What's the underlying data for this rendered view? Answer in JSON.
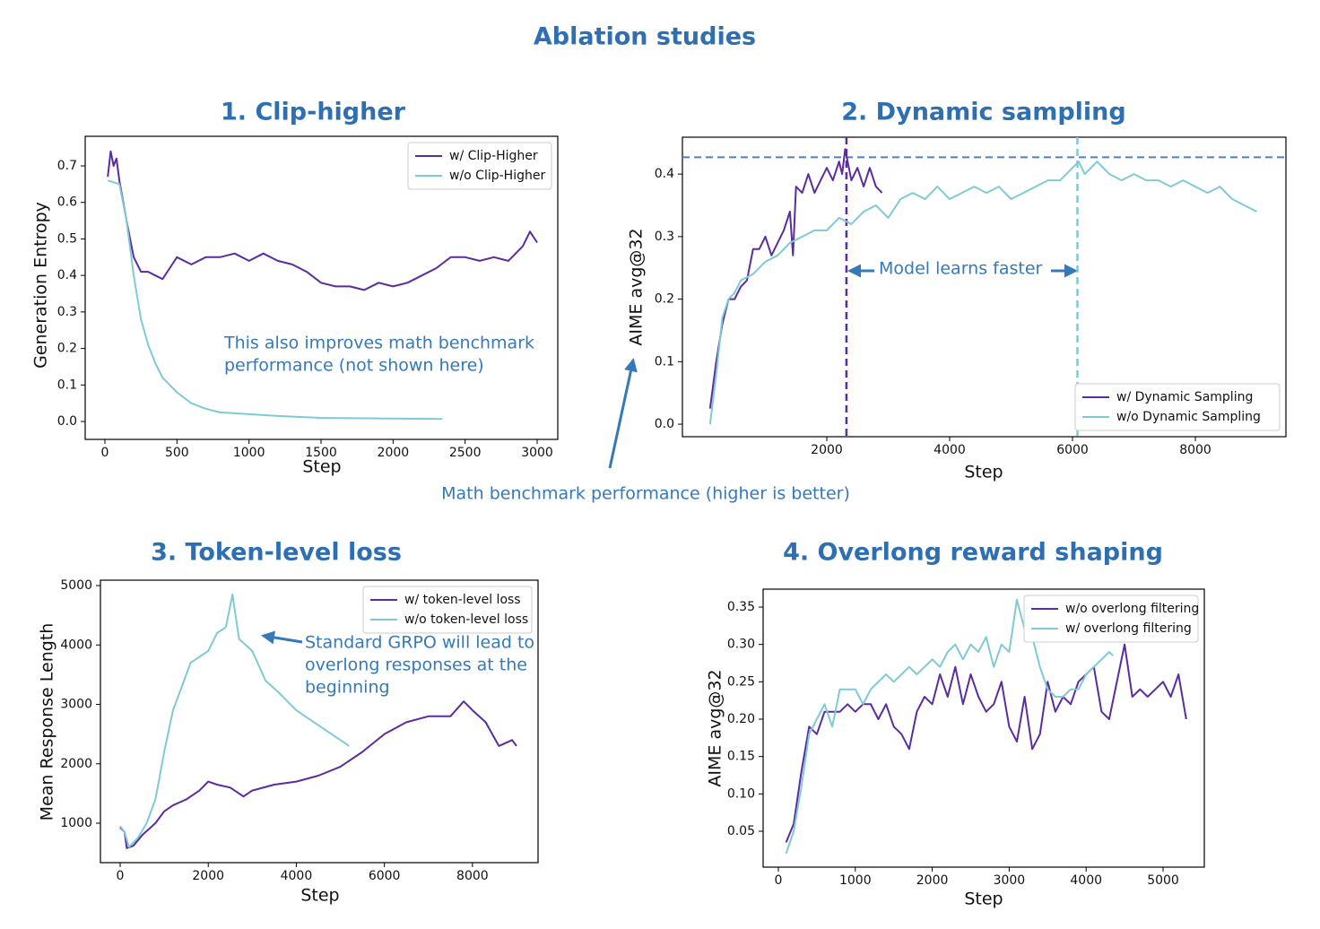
{
  "title": "Ablation studies",
  "annotation": "Math benchmark performance (higher is better)",
  "chart_data": [
    {
      "type": "line",
      "title": "1. Clip-higher",
      "xlabel": "Step",
      "ylabel": "Generation Entropy",
      "xlim": [
        -137,
        3143
      ],
      "ylim": [
        -0.049,
        0.781
      ],
      "xticks": [
        0,
        500,
        1000,
        1500,
        2000,
        2500,
        3000
      ],
      "yticks": [
        {
          "value": 0,
          "label": "0.0"
        },
        0.1,
        0.2,
        0.3,
        0.4,
        0.5,
        0.6,
        0.7
      ],
      "legend": "upper right",
      "annotation": [
        "This also improves math benchmark",
        "performance (not shown here)"
      ],
      "series": [
        {
          "name": "w/ Clip-Higher",
          "color": "#5b2c9f",
          "x": [
            20,
            40,
            60,
            80,
            100,
            150,
            200,
            250,
            300,
            350,
            400,
            450,
            500,
            600,
            700,
            800,
            900,
            1000,
            1100,
            1200,
            1300,
            1400,
            1500,
            1600,
            1700,
            1800,
            1900,
            2000,
            2100,
            2200,
            2300,
            2400,
            2500,
            2600,
            2700,
            2800,
            2900,
            2950,
            3000
          ],
          "values": [
            0.67,
            0.74,
            0.7,
            0.72,
            0.66,
            0.55,
            0.45,
            0.41,
            0.41,
            0.4,
            0.39,
            0.42,
            0.45,
            0.43,
            0.45,
            0.45,
            0.46,
            0.44,
            0.46,
            0.44,
            0.43,
            0.41,
            0.38,
            0.37,
            0.37,
            0.36,
            0.38,
            0.37,
            0.38,
            0.4,
            0.42,
            0.45,
            0.45,
            0.44,
            0.45,
            0.44,
            0.48,
            0.52,
            0.49
          ]
        },
        {
          "name": "w/o Clip-Higher",
          "color": "#7fcad4",
          "x": [
            20,
            100,
            150,
            200,
            250,
            300,
            350,
            400,
            500,
            600,
            700,
            800,
            1000,
            1200,
            1500,
            2000,
            2340
          ],
          "values": [
            0.66,
            0.65,
            0.55,
            0.4,
            0.28,
            0.21,
            0.16,
            0.12,
            0.08,
            0.05,
            0.035,
            0.025,
            0.02,
            0.015,
            0.01,
            0.008,
            0.007
          ]
        }
      ]
    },
    {
      "type": "line",
      "title": "2. Dynamic sampling",
      "xlabel": "Step",
      "ylabel": "AIME avg@32",
      "xlim": [
        -350,
        9474
      ],
      "ylim": [
        -0.02,
        0.459
      ],
      "xticks": [
        2000,
        4000,
        6000,
        8000
      ],
      "yticks": [
        {
          "value": 0,
          "label": "0.0"
        },
        0.1,
        0.2,
        0.3,
        0.4
      ],
      "legend": "lower right",
      "annotation": [
        "Model learns faster"
      ],
      "hlines": [
        {
          "value": 0.427,
          "color": "#4a7fcf"
        }
      ],
      "vlines": [
        {
          "value": 2320,
          "color": "#5b2c9f"
        },
        {
          "value": 6080,
          "color": "#7fcad4"
        }
      ],
      "series": [
        {
          "name": "w/ Dynamic Sampling",
          "color": "#5b2c9f",
          "x": [
            100,
            200,
            300,
            400,
            500,
            600,
            700,
            800,
            900,
            1000,
            1100,
            1200,
            1300,
            1400,
            1450,
            1500,
            1600,
            1700,
            1800,
            1900,
            2000,
            2100,
            2200,
            2250,
            2300,
            2400,
            2500,
            2600,
            2700,
            2800,
            2900
          ],
          "values": [
            0.025,
            0.1,
            0.16,
            0.2,
            0.2,
            0.22,
            0.23,
            0.28,
            0.28,
            0.3,
            0.27,
            0.29,
            0.31,
            0.34,
            0.27,
            0.38,
            0.37,
            0.4,
            0.37,
            0.39,
            0.41,
            0.39,
            0.42,
            0.4,
            0.44,
            0.39,
            0.41,
            0.38,
            0.41,
            0.38,
            0.37
          ]
        },
        {
          "name": "w/o Dynamic Sampling",
          "color": "#7fcad4",
          "x": [
            100,
            200,
            300,
            400,
            500,
            600,
            800,
            1000,
            1200,
            1400,
            1600,
            1800,
            2000,
            2200,
            2400,
            2600,
            2800,
            3000,
            3200,
            3400,
            3600,
            3800,
            4000,
            4200,
            4400,
            4600,
            4800,
            5000,
            5200,
            5400,
            5600,
            5800,
            6000,
            6100,
            6200,
            6400,
            6600,
            6800,
            7000,
            7200,
            7400,
            7600,
            7800,
            8000,
            8200,
            8400,
            8600,
            8800,
            9000
          ],
          "values": [
            0,
            0.08,
            0.17,
            0.2,
            0.21,
            0.23,
            0.24,
            0.26,
            0.27,
            0.29,
            0.3,
            0.31,
            0.31,
            0.33,
            0.32,
            0.34,
            0.35,
            0.33,
            0.36,
            0.37,
            0.36,
            0.38,
            0.36,
            0.37,
            0.38,
            0.37,
            0.38,
            0.36,
            0.37,
            0.38,
            0.39,
            0.39,
            0.41,
            0.42,
            0.4,
            0.42,
            0.4,
            0.39,
            0.4,
            0.39,
            0.39,
            0.38,
            0.39,
            0.38,
            0.37,
            0.38,
            0.36,
            0.35,
            0.34
          ]
        }
      ]
    },
    {
      "type": "line",
      "title": "3. Token-level loss",
      "xlabel": "Step",
      "ylabel": "Mean Response Length",
      "xlim": [
        -448,
        9489
      ],
      "ylim": [
        336,
        5091
      ],
      "xticks": [
        0,
        2000,
        4000,
        6000,
        8000
      ],
      "yticks": [
        1000,
        2000,
        3000,
        4000,
        5000
      ],
      "legend": "upper right",
      "annotation": [
        "Standard GRPO will lead to",
        "overlong responses at the",
        "beginning"
      ],
      "series": [
        {
          "name": "w/ token-level loss",
          "color": "#5b2c9f",
          "x": [
            0,
            100,
            150,
            300,
            500,
            800,
            1000,
            1200,
            1500,
            1800,
            2000,
            2200,
            2500,
            2800,
            3000,
            3500,
            4000,
            4500,
            5000,
            5500,
            6000,
            6500,
            7000,
            7500,
            7800,
            8000,
            8300,
            8600,
            8900,
            9000
          ],
          "values": [
            930,
            850,
            580,
            620,
            800,
            1000,
            1200,
            1300,
            1400,
            1550,
            1700,
            1650,
            1600,
            1450,
            1550,
            1650,
            1700,
            1800,
            1950,
            2200,
            2500,
            2700,
            2800,
            2800,
            3050,
            2900,
            2700,
            2300,
            2400,
            2300
          ]
        },
        {
          "name": "w/o token-level loss",
          "color": "#7fcad4",
          "x": [
            0,
            100,
            200,
            400,
            600,
            800,
            1000,
            1200,
            1400,
            1600,
            1800,
            2000,
            2200,
            2400,
            2550,
            2700,
            3000,
            3300,
            3600,
            4000,
            4400,
            4800,
            5200
          ],
          "values": [
            950,
            850,
            600,
            750,
            1000,
            1400,
            2200,
            2900,
            3300,
            3700,
            3800,
            3900,
            4200,
            4300,
            4850,
            4100,
            3900,
            3400,
            3200,
            2900,
            2700,
            2500,
            2300
          ]
        }
      ]
    },
    {
      "type": "line",
      "title": "4. Overlong reward shaping",
      "xlabel": "Step",
      "ylabel": "AIME avg@32",
      "xlim": [
        -198,
        5536
      ],
      "ylim": [
        0.002,
        0.374
      ],
      "xticks": [
        0,
        1000,
        2000,
        3000,
        4000,
        5000
      ],
      "yticks": [
        0.05,
        {
          "value": 0.1,
          "label": "0.10"
        },
        0.15,
        {
          "value": 0.2,
          "label": "0.20"
        },
        0.25,
        {
          "value": 0.3,
          "label": "0.30"
        },
        0.35
      ],
      "legend": "upper right",
      "series": [
        {
          "name": "w/o overlong filtering",
          "color": "#5b2c9f",
          "x": [
            100,
            200,
            300,
            400,
            500,
            600,
            700,
            800,
            900,
            1000,
            1100,
            1200,
            1300,
            1400,
            1500,
            1600,
            1700,
            1800,
            1900,
            2000,
            2100,
            2200,
            2300,
            2400,
            2500,
            2600,
            2700,
            2800,
            2900,
            3000,
            3100,
            3200,
            3300,
            3400,
            3500,
            3600,
            3700,
            3800,
            3900,
            4000,
            4100,
            4200,
            4300,
            4400,
            4500,
            4600,
            4700,
            4800,
            4900,
            5000,
            5100,
            5200,
            5300
          ],
          "values": [
            0.035,
            0.06,
            0.13,
            0.19,
            0.18,
            0.21,
            0.21,
            0.21,
            0.22,
            0.21,
            0.22,
            0.22,
            0.2,
            0.22,
            0.19,
            0.18,
            0.16,
            0.21,
            0.23,
            0.22,
            0.26,
            0.23,
            0.27,
            0.22,
            0.26,
            0.23,
            0.21,
            0.22,
            0.25,
            0.19,
            0.17,
            0.23,
            0.16,
            0.18,
            0.25,
            0.21,
            0.23,
            0.22,
            0.25,
            0.26,
            0.27,
            0.21,
            0.2,
            0.25,
            0.3,
            0.23,
            0.24,
            0.23,
            0.24,
            0.25,
            0.23,
            0.26,
            0.2
          ]
        },
        {
          "name": "w/ overlong filtering",
          "color": "#7fcad4",
          "x": [
            100,
            200,
            300,
            400,
            500,
            600,
            700,
            800,
            900,
            1000,
            1100,
            1200,
            1300,
            1400,
            1500,
            1600,
            1700,
            1800,
            1900,
            2000,
            2100,
            2200,
            2300,
            2400,
            2500,
            2600,
            2700,
            2800,
            2900,
            3000,
            3100,
            3200,
            3300,
            3400,
            3500,
            3600,
            3700,
            3800,
            3900,
            4000,
            4100,
            4200,
            4300,
            4350
          ],
          "values": [
            0.02,
            0.05,
            0.11,
            0.18,
            0.2,
            0.22,
            0.19,
            0.24,
            0.24,
            0.24,
            0.22,
            0.24,
            0.25,
            0.26,
            0.25,
            0.26,
            0.27,
            0.26,
            0.27,
            0.28,
            0.27,
            0.29,
            0.3,
            0.28,
            0.3,
            0.29,
            0.31,
            0.27,
            0.3,
            0.29,
            0.36,
            0.32,
            0.31,
            0.27,
            0.24,
            0.23,
            0.23,
            0.24,
            0.24,
            0.26,
            0.27,
            0.28,
            0.29,
            0.285
          ]
        }
      ]
    }
  ]
}
